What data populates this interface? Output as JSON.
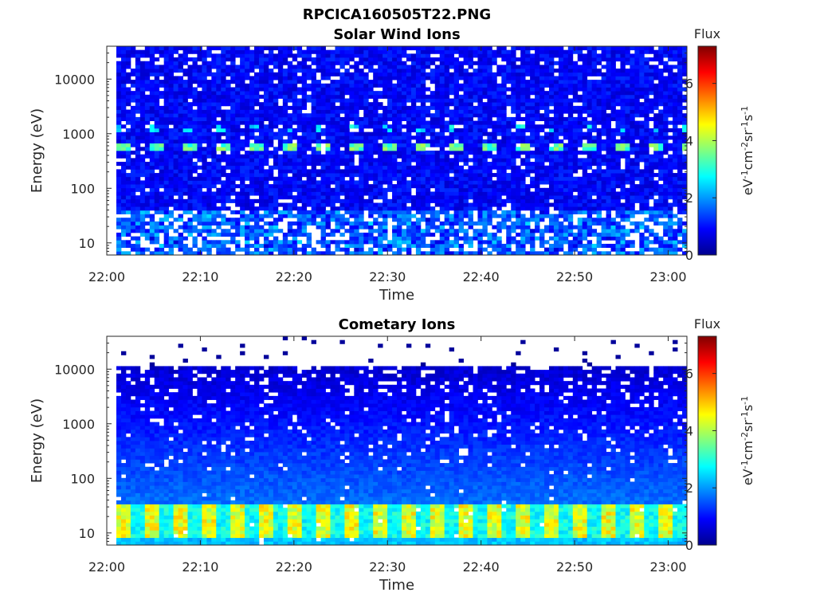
{
  "figure_title": "RPCICA160505T22.PNG",
  "chart_data": [
    {
      "type": "heatmap",
      "title": "Solar Wind Ions",
      "xlabel": "Time",
      "ylabel": "Energy (eV)",
      "x_ticks": [
        "22:00",
        "22:10",
        "22:20",
        "22:30",
        "22:40",
        "22:50",
        "23:00"
      ],
      "x_range": [
        "22:00",
        "23:02"
      ],
      "y_scale": "log",
      "y_ticks": [
        "10",
        "100",
        "1000",
        "10000"
      ],
      "y_range": [
        6,
        40000
      ],
      "colorbar": {
        "title": "Flux",
        "label": "eV-1cm-2sr-1s-1",
        "ticks": [
          "0",
          "2",
          "4",
          "6"
        ],
        "range": [
          0,
          7.3
        ],
        "colormap": "jet"
      },
      "features": [
        {
          "description": "periodic high-flux band",
          "energy_eV": 600,
          "flux": 3.5
        },
        {
          "description": "periodic secondary band",
          "energy_eV": 1200,
          "flux": 2.5
        },
        {
          "description": "background",
          "energy_eV_range": [
            6,
            40000
          ],
          "flux": 0.8
        }
      ]
    },
    {
      "type": "heatmap",
      "title": "Cometary Ions",
      "xlabel": "Time",
      "ylabel": "Energy (eV)",
      "x_ticks": [
        "22:00",
        "22:10",
        "22:20",
        "22:30",
        "22:40",
        "22:50",
        "23:00"
      ],
      "x_range": [
        "22:00",
        "23:02"
      ],
      "y_scale": "log",
      "y_ticks": [
        "10",
        "100",
        "1000",
        "10000"
      ],
      "y_range": [
        6,
        40000
      ],
      "colorbar": {
        "title": "Flux",
        "label": "eV-1cm-2sr-1s-1",
        "ticks": [
          "0",
          "2",
          "4",
          "6"
        ],
        "range": [
          0,
          7.3
        ],
        "colormap": "jet"
      },
      "features": [
        {
          "description": "periodic high-flux low-energy band",
          "energy_eV_range": [
            8,
            30
          ],
          "flux": 4.5
        },
        {
          "description": "background decreasing with energy",
          "energy_eV_range": [
            30,
            10000
          ],
          "flux": 1.2
        },
        {
          "description": "sparse counts above ~11000 eV",
          "energy_eV_range": [
            11000,
            40000
          ],
          "flux": 0.3
        }
      ]
    }
  ]
}
